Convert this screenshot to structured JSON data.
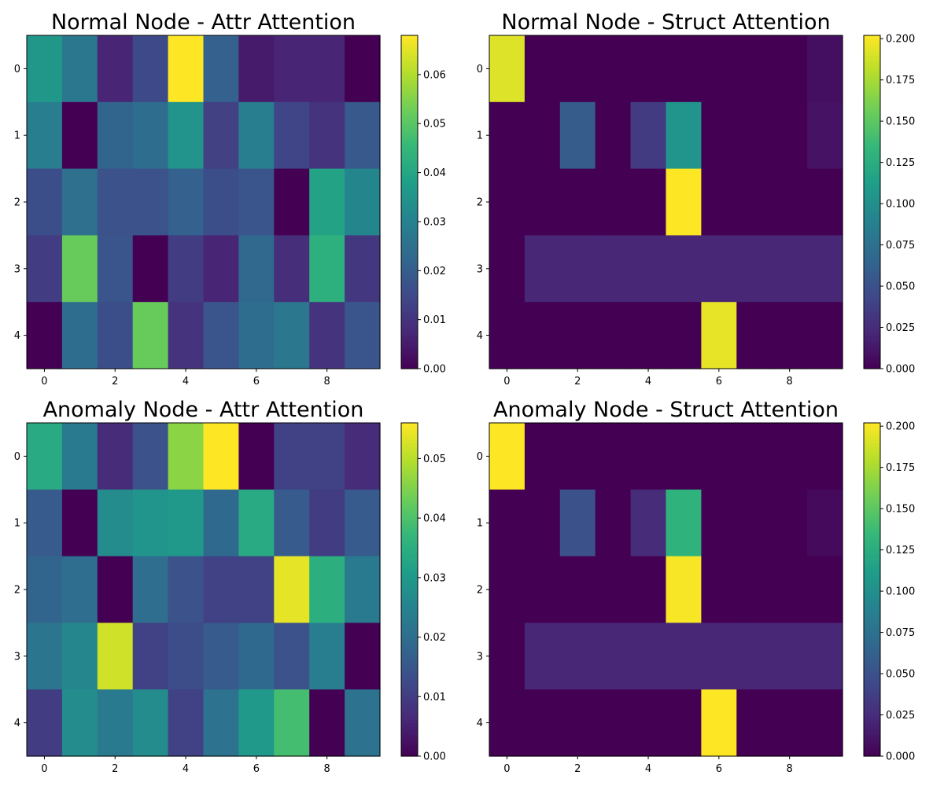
{
  "chart_data": [
    {
      "type": "heatmap",
      "title": "Normal Node - Attr Attention",
      "xlabel": "",
      "ylabel": "",
      "rows": [
        0,
        1,
        2,
        3,
        4
      ],
      "cols": [
        0,
        1,
        2,
        3,
        4,
        5,
        6,
        7,
        8,
        9
      ],
      "xticks": [
        0,
        2,
        4,
        6,
        8
      ],
      "yticks": [
        0,
        1,
        2,
        3,
        4
      ],
      "colormap": "viridis",
      "vmin": 0.0,
      "vmax": 0.068,
      "cbar_ticks": [
        0.0,
        0.01,
        0.02,
        0.03,
        0.04,
        0.05,
        0.06
      ],
      "cbar_labels": [
        "0.00",
        "0.01",
        "0.02",
        "0.03",
        "0.04",
        "0.05",
        "0.06"
      ],
      "values": [
        [
          0.036,
          0.027,
          0.007,
          0.015,
          0.068,
          0.021,
          0.005,
          0.007,
          0.007,
          0.0
        ],
        [
          0.029,
          0.0,
          0.022,
          0.024,
          0.035,
          0.013,
          0.029,
          0.014,
          0.01,
          0.019
        ],
        [
          0.016,
          0.025,
          0.017,
          0.017,
          0.021,
          0.016,
          0.018,
          0.0,
          0.039,
          0.031
        ],
        [
          0.012,
          0.052,
          0.018,
          0.0,
          0.012,
          0.007,
          0.023,
          0.009,
          0.043,
          0.011
        ],
        [
          0.0,
          0.024,
          0.016,
          0.052,
          0.01,
          0.018,
          0.024,
          0.027,
          0.01,
          0.018
        ]
      ]
    },
    {
      "type": "heatmap",
      "title": "Normal Node - Struct Attention",
      "xlabel": "",
      "ylabel": "",
      "rows": [
        0,
        1,
        2,
        3,
        4
      ],
      "cols": [
        0,
        1,
        2,
        3,
        4,
        5,
        6,
        7,
        8,
        9
      ],
      "xticks": [
        0,
        2,
        4,
        6,
        8
      ],
      "yticks": [
        0,
        1,
        2,
        3,
        4
      ],
      "colormap": "viridis",
      "vmin": 0.0,
      "vmax": 0.202,
      "cbar_ticks": [
        0.0,
        0.025,
        0.05,
        0.075,
        0.1,
        0.125,
        0.15,
        0.175,
        0.2
      ],
      "cbar_labels": [
        "0.000",
        "0.025",
        "0.050",
        "0.075",
        "0.100",
        "0.125",
        "0.150",
        "0.175",
        "0.200"
      ],
      "values": [
        [
          0.192,
          0.0,
          0.0,
          0.0,
          0.0,
          0.0,
          0.0,
          0.0,
          0.0,
          0.008
        ],
        [
          0.0,
          0.0,
          0.058,
          0.0,
          0.035,
          0.105,
          0.0,
          0.0,
          0.0,
          0.01
        ],
        [
          0.0,
          0.0,
          0.0,
          0.0,
          0.0,
          0.202,
          0.0,
          0.0,
          0.0,
          0.0
        ],
        [
          0.0,
          0.022,
          0.022,
          0.022,
          0.022,
          0.022,
          0.022,
          0.022,
          0.022,
          0.022
        ],
        [
          0.0,
          0.0,
          0.0,
          0.0,
          0.0,
          0.0,
          0.195,
          0.0,
          0.0,
          0.0
        ]
      ]
    },
    {
      "type": "heatmap",
      "title": "Anomaly Node - Attr Attention",
      "xlabel": "",
      "ylabel": "",
      "rows": [
        0,
        1,
        2,
        3,
        4
      ],
      "cols": [
        0,
        1,
        2,
        3,
        4,
        5,
        6,
        7,
        8,
        9
      ],
      "xticks": [
        0,
        2,
        4,
        6,
        8
      ],
      "yticks": [
        0,
        1,
        2,
        3,
        4
      ],
      "colormap": "viridis",
      "vmin": 0.0,
      "vmax": 0.056,
      "cbar_ticks": [
        0.0,
        0.01,
        0.02,
        0.03,
        0.04,
        0.05
      ],
      "cbar_labels": [
        "0.00",
        "0.01",
        "0.02",
        "0.03",
        "0.04",
        "0.05"
      ],
      "values": [
        [
          0.034,
          0.023,
          0.007,
          0.014,
          0.046,
          0.056,
          0.0,
          0.011,
          0.011,
          0.007
        ],
        [
          0.016,
          0.0,
          0.027,
          0.029,
          0.03,
          0.019,
          0.034,
          0.016,
          0.01,
          0.016
        ],
        [
          0.018,
          0.02,
          0.0,
          0.02,
          0.014,
          0.011,
          0.011,
          0.054,
          0.035,
          0.023
        ],
        [
          0.022,
          0.026,
          0.052,
          0.011,
          0.013,
          0.016,
          0.019,
          0.014,
          0.024,
          0.0
        ],
        [
          0.01,
          0.027,
          0.023,
          0.027,
          0.011,
          0.021,
          0.03,
          0.039,
          0.0,
          0.021
        ]
      ]
    },
    {
      "type": "heatmap",
      "title": "Anomaly Node - Struct Attention",
      "xlabel": "",
      "ylabel": "",
      "rows": [
        0,
        1,
        2,
        3,
        4
      ],
      "cols": [
        0,
        1,
        2,
        3,
        4,
        5,
        6,
        7,
        8,
        9
      ],
      "xticks": [
        0,
        2,
        4,
        6,
        8
      ],
      "yticks": [
        0,
        1,
        2,
        3,
        4
      ],
      "colormap": "viridis",
      "vmin": 0.0,
      "vmax": 0.202,
      "cbar_ticks": [
        0.0,
        0.025,
        0.05,
        0.075,
        0.1,
        0.125,
        0.15,
        0.175,
        0.2
      ],
      "cbar_labels": [
        "0.000",
        "0.025",
        "0.050",
        "0.075",
        "0.100",
        "0.125",
        "0.150",
        "0.175",
        "0.200"
      ],
      "values": [
        [
          0.202,
          0.0,
          0.0,
          0.0,
          0.0,
          0.0,
          0.0,
          0.0,
          0.0,
          0.0
        ],
        [
          0.0,
          0.0,
          0.05,
          0.0,
          0.025,
          0.13,
          0.0,
          0.0,
          0.0,
          0.005
        ],
        [
          0.0,
          0.0,
          0.0,
          0.0,
          0.0,
          0.2,
          0.0,
          0.0,
          0.0,
          0.0
        ],
        [
          0.0,
          0.022,
          0.022,
          0.022,
          0.022,
          0.022,
          0.022,
          0.022,
          0.022,
          0.022
        ],
        [
          0.0,
          0.0,
          0.0,
          0.0,
          0.0,
          0.0,
          0.202,
          0.0,
          0.0,
          0.0
        ]
      ]
    }
  ]
}
